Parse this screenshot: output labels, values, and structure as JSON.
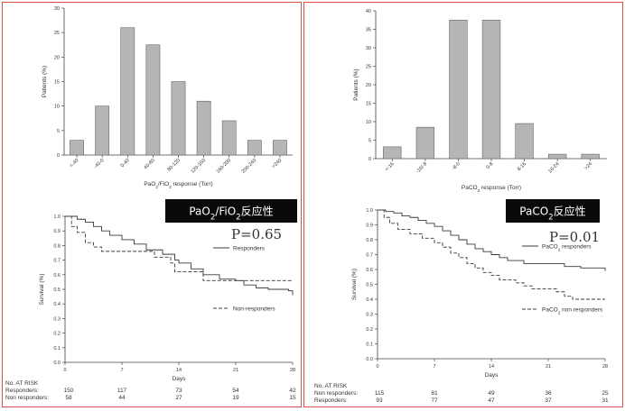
{
  "chart_data": [
    {
      "id": "pao2-hist",
      "type": "bar",
      "categories": [
        "<-40",
        "-40-0",
        "0-40",
        "40-80",
        "80-120",
        "120-160",
        "160-200",
        "200-240",
        ">240"
      ],
      "values": [
        3,
        10,
        26,
        22.5,
        15,
        11,
        7,
        3,
        3
      ],
      "ylabel": "Patients (%)",
      "xlabel_main": "PaO",
      "xlabel_sub1": "2",
      "xlabel_mid": "/FiO",
      "xlabel_sub2": "2",
      "xlabel_tail": " response (Torr)",
      "ylim": [
        0,
        30
      ],
      "yticks": [
        0,
        5,
        10,
        15,
        20,
        25,
        30
      ],
      "bar_color": "#b5b5b5"
    },
    {
      "id": "paco2-hist",
      "type": "bar",
      "categories": [
        "<-16",
        "-16/-8",
        "-8-0",
        "0-8",
        "8-16",
        "16-24",
        ">24"
      ],
      "values": [
        3.2,
        8.5,
        37.5,
        37.5,
        9.5,
        1.2,
        1.2
      ],
      "ylabel": "Patients (%)",
      "xlabel_main": "PaCO",
      "xlabel_sub1": "2",
      "xlabel_tail": " response (Torr)",
      "ylim": [
        0,
        40
      ],
      "yticks": [
        0,
        5,
        10,
        15,
        20,
        25,
        30,
        35,
        40
      ],
      "bar_color": "#b5b5b5"
    },
    {
      "id": "pao2-survival",
      "type": "line",
      "xlabel": "Days",
      "ylabel": "Survival (%)",
      "xlim": [
        0,
        28
      ],
      "ylim": [
        0,
        1
      ],
      "xticks": [
        0,
        7,
        14,
        21,
        28
      ],
      "yticks": [
        "0.0",
        "0.1",
        "0.2",
        "0.3",
        "0.4",
        "0.5",
        "0.6",
        "0.7",
        "0.8",
        "0.9",
        "1.0"
      ],
      "box_label_main": "PaO",
      "box_label_sub1": "2",
      "box_label_mid": "/FiO",
      "box_label_sub2": "2",
      "box_label_tail": "反应性",
      "p_value": "P=0.65",
      "series": [
        {
          "name": "Responders",
          "dash": "solid",
          "points": [
            [
              0,
              1.0
            ],
            [
              1.5,
              0.98
            ],
            [
              2.5,
              0.96
            ],
            [
              3.5,
              0.93
            ],
            [
              4.5,
              0.9
            ],
            [
              5.5,
              0.87
            ],
            [
              7,
              0.84
            ],
            [
              8.5,
              0.81
            ],
            [
              10,
              0.77
            ],
            [
              12,
              0.74
            ],
            [
              13.5,
              0.7
            ],
            [
              14,
              0.68
            ],
            [
              15.5,
              0.64
            ],
            [
              17,
              0.6
            ],
            [
              19,
              0.57
            ],
            [
              21,
              0.56
            ],
            [
              22,
              0.53
            ],
            [
              23.5,
              0.51
            ],
            [
              25,
              0.5
            ],
            [
              27.5,
              0.49
            ],
            [
              28,
              0.46
            ]
          ]
        },
        {
          "name": "Non-responders",
          "dash": "dashed",
          "points": [
            [
              0,
              1.0
            ],
            [
              0.8,
              0.93
            ],
            [
              1.5,
              0.89
            ],
            [
              2.5,
              0.82
            ],
            [
              3.5,
              0.79
            ],
            [
              4.5,
              0.76
            ],
            [
              10,
              0.76
            ],
            [
              11,
              0.72
            ],
            [
              13,
              0.68
            ],
            [
              13.5,
              0.62
            ],
            [
              16,
              0.62
            ],
            [
              17,
              0.56
            ],
            [
              28,
              0.56
            ]
          ]
        }
      ],
      "risk_title": "No. AT RISK",
      "risk_rows": [
        {
          "label": "Responders:",
          "values": [
            "150",
            "117",
            "73",
            "54",
            "42"
          ]
        },
        {
          "label": "Non responders:",
          "values": [
            "58",
            "44",
            "27",
            "19",
            "15"
          ]
        }
      ]
    },
    {
      "id": "paco2-survival",
      "type": "line",
      "xlabel": "Days",
      "ylabel": "Survival (%)",
      "xlim": [
        0,
        28
      ],
      "ylim": [
        0,
        1
      ],
      "xticks": [
        0,
        7,
        14,
        21,
        28
      ],
      "yticks": [
        "0.0",
        "0.1",
        "0.2",
        "0.3",
        "0.4",
        "0.5",
        "0.6",
        "0.7",
        "0.8",
        "0.9",
        "1.0"
      ],
      "box_label_main": "PaCO",
      "box_label_sub1": "2",
      "box_label_tail": "反应性",
      "p_value": "P=0.01",
      "series": [
        {
          "name": "PaCO2 responders",
          "legend_main": "PaCO",
          "legend_sub": "2",
          "legend_tail": " responders",
          "dash": "solid",
          "points": [
            [
              0,
              1.0
            ],
            [
              1,
              0.99
            ],
            [
              2,
              0.98
            ],
            [
              3,
              0.96
            ],
            [
              4,
              0.95
            ],
            [
              5,
              0.93
            ],
            [
              6,
              0.91
            ],
            [
              7,
              0.89
            ],
            [
              8,
              0.86
            ],
            [
              9,
              0.83
            ],
            [
              10,
              0.8
            ],
            [
              11,
              0.77
            ],
            [
              12,
              0.74
            ],
            [
              13,
              0.72
            ],
            [
              14,
              0.7
            ],
            [
              15,
              0.68
            ],
            [
              16,
              0.66
            ],
            [
              18,
              0.64
            ],
            [
              21,
              0.64
            ],
            [
              23,
              0.62
            ],
            [
              25,
              0.61
            ],
            [
              28,
              0.59
            ]
          ]
        },
        {
          "name": "PaCO2 non responders",
          "legend_main": "PaCO",
          "legend_sub": "2",
          "legend_tail": " non responders",
          "dash": "dashed",
          "points": [
            [
              0,
              1.0
            ],
            [
              0.8,
              0.95
            ],
            [
              1.5,
              0.91
            ],
            [
              2.5,
              0.87
            ],
            [
              4,
              0.84
            ],
            [
              5.5,
              0.81
            ],
            [
              7,
              0.78
            ],
            [
              8,
              0.75
            ],
            [
              9,
              0.71
            ],
            [
              10,
              0.68
            ],
            [
              11,
              0.64
            ],
            [
              12,
              0.61
            ],
            [
              13,
              0.58
            ],
            [
              14,
              0.56
            ],
            [
              15,
              0.53
            ],
            [
              17,
              0.51
            ],
            [
              18,
              0.49
            ],
            [
              19,
              0.47
            ],
            [
              21,
              0.47
            ],
            [
              22,
              0.45
            ],
            [
              23,
              0.42
            ],
            [
              24,
              0.4
            ],
            [
              28,
              0.4
            ]
          ]
        }
      ],
      "risk_title": "No. AT RISK",
      "risk_rows": [
        {
          "label": "Non responders:",
          "values": [
            "115",
            "81",
            "49",
            "36",
            "25"
          ]
        },
        {
          "label": "Responders:",
          "values": [
            "93",
            "77",
            "47",
            "37",
            "31"
          ]
        }
      ]
    }
  ]
}
